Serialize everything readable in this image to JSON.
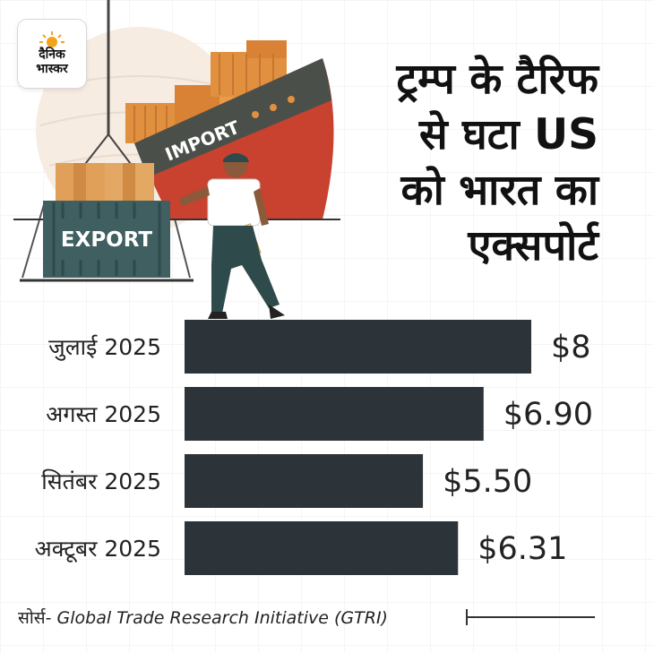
{
  "brand": {
    "logo_line1": "दैनिक",
    "logo_line2": "भास्कर"
  },
  "headline": {
    "lines": [
      "ट्रम्प के टैरिफ",
      "से घटा US",
      "को भारत का",
      "एक्सपोर्ट"
    ]
  },
  "illustration": {
    "export_label": "EXPORT",
    "import_label": "IMPORT"
  },
  "chart_data": {
    "type": "bar",
    "orientation": "horizontal",
    "categories": [
      "जुलाई 2025",
      "अगस्त 2025",
      "सितंबर 2025",
      "अक्टूबर 2025"
    ],
    "values": [
      8,
      6.9,
      5.5,
      6.31
    ],
    "value_labels": [
      "$8",
      "$6.90",
      "$5.50",
      "$6.31"
    ],
    "xlim": [
      0,
      8
    ],
    "grid": false,
    "bar_color": "#2d3439"
  },
  "source": {
    "prefix": "सोर्स- ",
    "text": "Global Trade Research Initiative (GTRI)"
  },
  "colors": {
    "ship_red": "#c8422f",
    "ship_dark": "#4b4f49",
    "container_orange": "#e0903f",
    "container_teal": "#3f5f60",
    "bar": "#2d3439"
  }
}
